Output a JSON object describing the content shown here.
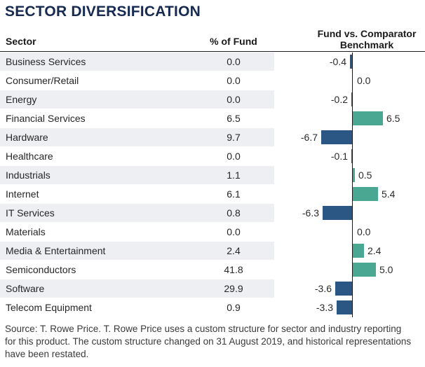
{
  "title": "SECTOR DIVERSIFICATION",
  "columns": {
    "sector": "Sector",
    "pct": "% of Fund",
    "chart": "Fund vs. Comparator Benchmark"
  },
  "colors": {
    "title_navy": "#172a52",
    "bar_positive_teal": "#4aa892",
    "bar_negative_navy": "#2a5783",
    "row_stripe": "#edeff3",
    "axis": "#1a1a1a"
  },
  "chart_data": {
    "type": "bar",
    "orientation": "horizontal",
    "title": "SECTOR DIVERSIFICATION",
    "categories": [
      "Business Services",
      "Consumer/Retail",
      "Energy",
      "Financial Services",
      "Hardware",
      "Healthcare",
      "Industrials",
      "Internet",
      "IT Services",
      "Materials",
      "Media & Entertainment",
      "Semiconductors",
      "Software",
      "Telecom Equipment"
    ],
    "series": [
      {
        "name": "% of Fund",
        "values": [
          0.0,
          0.0,
          0.0,
          6.5,
          9.7,
          0.0,
          1.1,
          6.1,
          0.8,
          0.0,
          2.4,
          41.8,
          29.9,
          0.9
        ]
      },
      {
        "name": "Fund vs. Comparator Benchmark",
        "values": [
          -0.4,
          0.0,
          -0.2,
          6.5,
          -6.7,
          -0.1,
          0.5,
          5.4,
          -6.3,
          0.0,
          2.4,
          5.0,
          -3.6,
          -3.3
        ]
      }
    ],
    "xlim": [
      -8,
      8
    ],
    "value_labels": true,
    "legend": false,
    "grid": false
  },
  "rows": [
    {
      "sector": "Business Services",
      "pct": "0.0",
      "diff": -0.4,
      "diff_label": "-0.4"
    },
    {
      "sector": "Consumer/Retail",
      "pct": "0.0",
      "diff": 0.0,
      "diff_label": "0.0"
    },
    {
      "sector": "Energy",
      "pct": "0.0",
      "diff": -0.2,
      "diff_label": "-0.2"
    },
    {
      "sector": "Financial Services",
      "pct": "6.5",
      "diff": 6.5,
      "diff_label": "6.5"
    },
    {
      "sector": "Hardware",
      "pct": "9.7",
      "diff": -6.7,
      "diff_label": "-6.7"
    },
    {
      "sector": "Healthcare",
      "pct": "0.0",
      "diff": -0.1,
      "diff_label": "-0.1"
    },
    {
      "sector": "Industrials",
      "pct": "1.1",
      "diff": 0.5,
      "diff_label": "0.5"
    },
    {
      "sector": "Internet",
      "pct": "6.1",
      "diff": 5.4,
      "diff_label": "5.4"
    },
    {
      "sector": "IT Services",
      "pct": "0.8",
      "diff": -6.3,
      "diff_label": "-6.3"
    },
    {
      "sector": "Materials",
      "pct": "0.0",
      "diff": 0.0,
      "diff_label": "0.0"
    },
    {
      "sector": "Media & Entertainment",
      "pct": "2.4",
      "diff": 2.4,
      "diff_label": "2.4"
    },
    {
      "sector": "Semiconductors",
      "pct": "41.8",
      "diff": 5.0,
      "diff_label": "5.0"
    },
    {
      "sector": "Software",
      "pct": "29.9",
      "diff": -3.6,
      "diff_label": "-3.6"
    },
    {
      "sector": "Telecom Equipment",
      "pct": "0.9",
      "diff": -3.3,
      "diff_label": "-3.3"
    }
  ],
  "footer": "Source: T. Rowe Price. T. Rowe Price uses a custom structure for sector and industry reporting for this product. The custom structure changed on 31 August 2019, and historical representations have been restated."
}
